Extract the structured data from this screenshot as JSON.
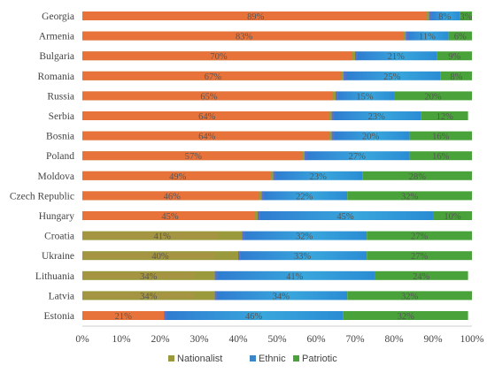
{
  "chart_data": {
    "type": "bar",
    "orientation": "horizontal",
    "stacked": true,
    "categories": [
      "Georgia",
      "Armenia",
      "Bulgaria",
      "Romania",
      "Russia",
      "Serbia",
      "Bosnia",
      "Poland",
      "Moldova",
      "Czech Republic",
      "Hungary",
      "Croatia",
      "Ukraine",
      "Lithuania",
      "Latvia",
      "Estonia"
    ],
    "series": [
      {
        "name": "Nationalist",
        "color": "#9a9a3c",
        "values": [
          89,
          83,
          70,
          67,
          65,
          64,
          64,
          57,
          49,
          46,
          45,
          41,
          40,
          34,
          34,
          21
        ]
      },
      {
        "name": "Ethnic",
        "color": "#3a86c8",
        "values": [
          8,
          11,
          21,
          25,
          15,
          23,
          20,
          27,
          23,
          22,
          45,
          32,
          33,
          41,
          34,
          46
        ]
      },
      {
        "name": "Patriotic",
        "color": "#4aa33a",
        "values": [
          3,
          6,
          9,
          8,
          20,
          12,
          16,
          16,
          28,
          32,
          10,
          27,
          27,
          24,
          32,
          32
        ]
      }
    ],
    "overlay_color": "#e8733a",
    "data_labels": true,
    "xlim": [
      0,
      100
    ],
    "x_ticks": [
      "0%",
      "10%",
      "20%",
      "30%",
      "40%",
      "50%",
      "60%",
      "70%",
      "80%",
      "90%",
      "100%"
    ],
    "grid": false,
    "legend_position": "bottom"
  }
}
